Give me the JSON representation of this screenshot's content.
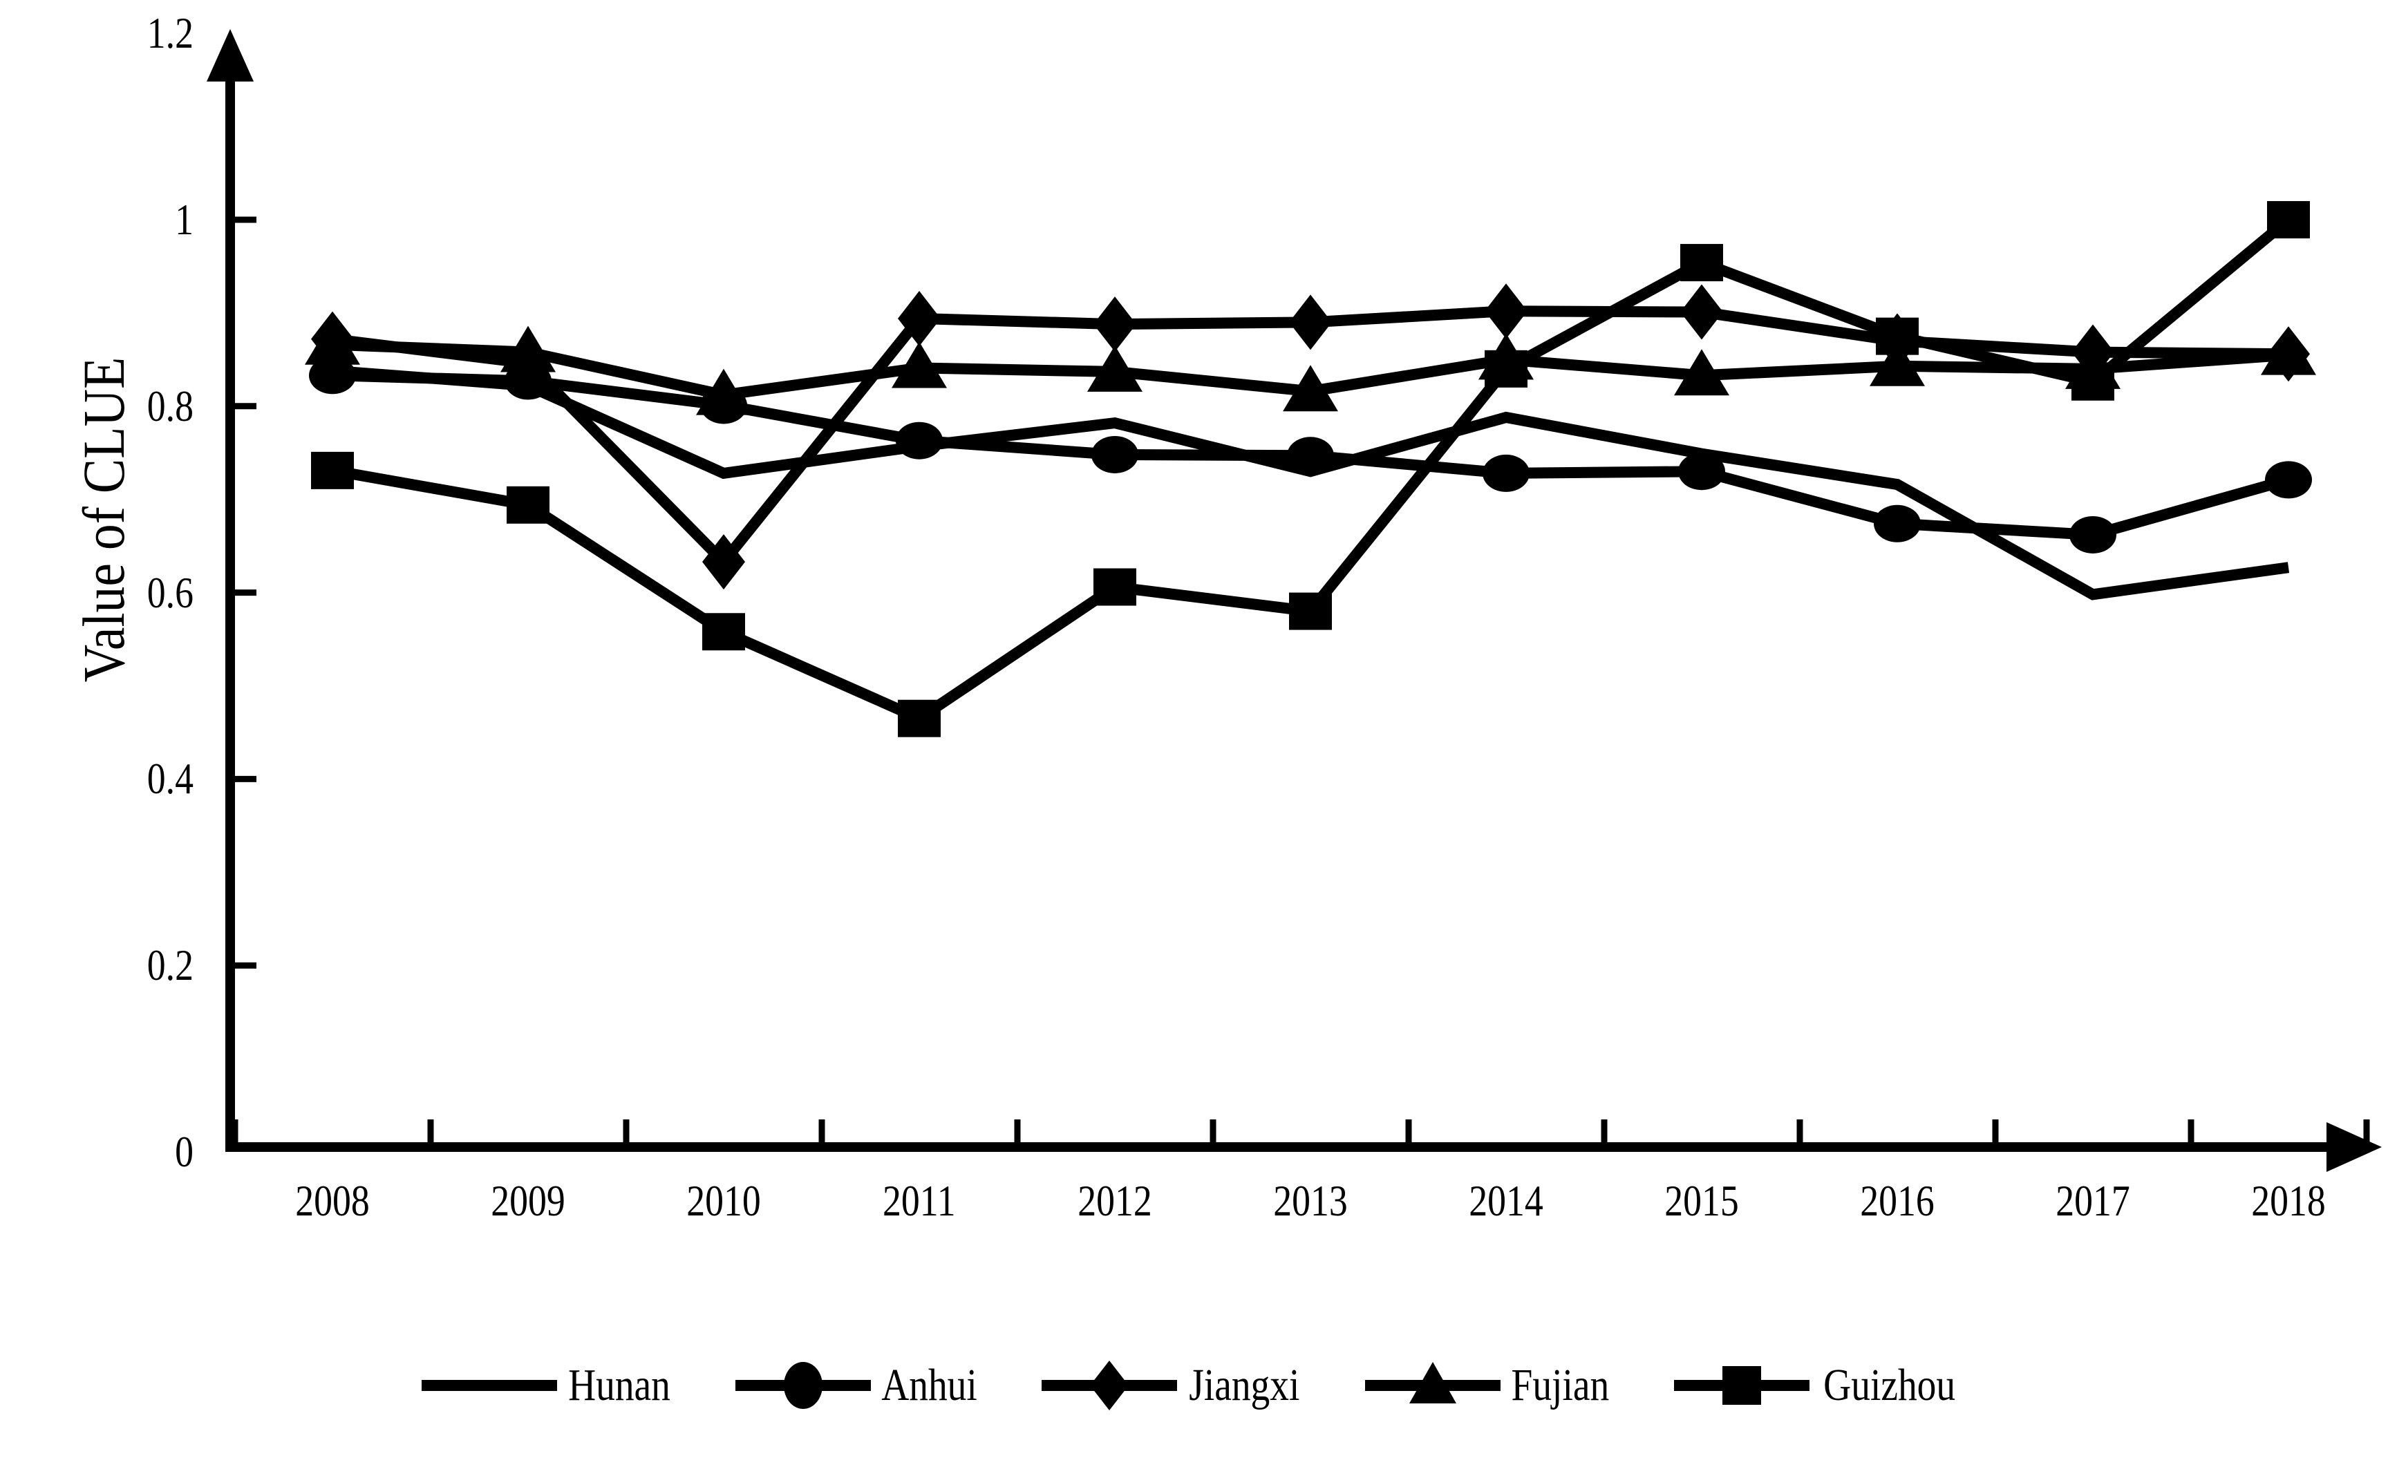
{
  "figure": {
    "y_axis_title": "Value of CLUE"
  },
  "chart_data": {
    "type": "line",
    "title": "",
    "xlabel": "",
    "ylabel": "Value of CLUE",
    "grid": false,
    "legend_position": "bottom",
    "background_color": "#ffffff",
    "line_color": "#000000",
    "ylim": [
      0,
      1.2
    ],
    "y_ticks": [
      {
        "label": "0",
        "value": 0
      },
      {
        "label": "0.2",
        "value": 0.2
      },
      {
        "label": "0.4",
        "value": 0.4
      },
      {
        "label": "0.6",
        "value": 0.6
      },
      {
        "label": "0.8",
        "value": 0.8
      },
      {
        "label": "1",
        "value": 1
      },
      {
        "label": "1.2",
        "value": 1.2
      }
    ],
    "categories": [
      "2008",
      "2009",
      "2010",
      "2011",
      "2012",
      "2013",
      "2014",
      "2015",
      "2016",
      "2017",
      "2018"
    ],
    "series": [
      {
        "name": "Hunan",
        "marker": "none",
        "values": [
          0.838,
          0.822,
          0.728,
          0.757,
          0.782,
          0.73,
          0.788,
          0.749,
          0.716,
          0.598,
          0.627
        ]
      },
      {
        "name": "Anhui",
        "marker": "circle",
        "values": [
          0.833,
          0.827,
          0.801,
          0.763,
          0.748,
          0.747,
          0.728,
          0.73,
          0.674,
          0.662,
          0.721
        ]
      },
      {
        "name": "Jiangxi",
        "marker": "diamond",
        "values": [
          0.872,
          0.846,
          0.633,
          0.894,
          0.888,
          0.89,
          0.902,
          0.901,
          0.87,
          0.858,
          0.856
        ]
      },
      {
        "name": "Fujian",
        "marker": "triangle",
        "values": [
          0.866,
          0.858,
          0.812,
          0.841,
          0.837,
          0.816,
          0.85,
          0.833,
          0.843,
          0.84,
          0.855
        ]
      },
      {
        "name": "Guizhou",
        "marker": "square",
        "values": [
          0.731,
          0.694,
          0.558,
          0.465,
          0.606,
          0.58,
          0.84,
          0.954,
          0.875,
          0.826,
          1.0
        ]
      }
    ]
  }
}
